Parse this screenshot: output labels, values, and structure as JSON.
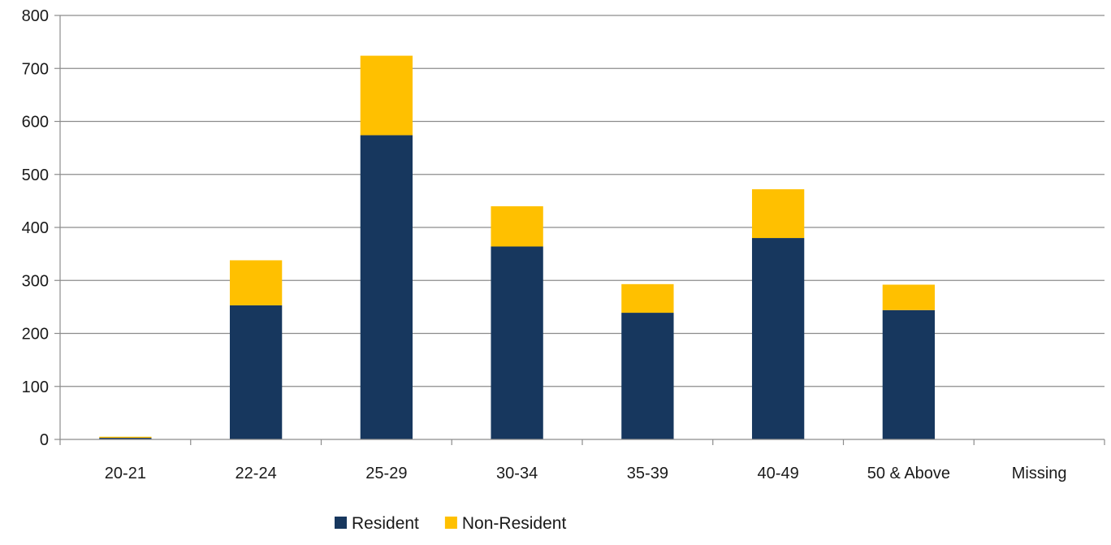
{
  "chart_data": {
    "type": "bar",
    "stacked": true,
    "categories": [
      "20-21",
      "22-24",
      "25-29",
      "30-34",
      "35-39",
      "40-49",
      "50 & Above",
      "Missing"
    ],
    "series": [
      {
        "name": "Resident",
        "color": "#17375e",
        "values": [
          3,
          253,
          574,
          364,
          239,
          380,
          244,
          0
        ]
      },
      {
        "name": "Non-Resident",
        "color": "#ffc000",
        "values": [
          2,
          85,
          150,
          76,
          54,
          92,
          48,
          0
        ]
      }
    ],
    "ylim": [
      0,
      800
    ],
    "yticks": [
      0,
      100,
      200,
      300,
      400,
      500,
      600,
      700,
      800
    ],
    "grid": true,
    "legend": "bottom-center",
    "title": "",
    "xlabel": "",
    "ylabel": ""
  }
}
